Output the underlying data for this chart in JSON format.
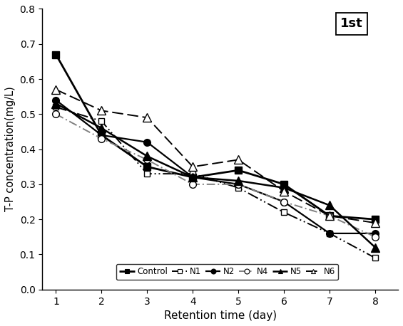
{
  "x": [
    1,
    2,
    3,
    4,
    5,
    6,
    7,
    8
  ],
  "series": {
    "Control": [
      0.67,
      0.44,
      0.35,
      0.32,
      0.34,
      0.3,
      0.21,
      0.2
    ],
    "N1": [
      0.52,
      0.48,
      0.33,
      0.33,
      0.29,
      0.22,
      0.16,
      0.09
    ],
    "N2": [
      0.54,
      0.44,
      0.42,
      0.32,
      0.3,
      0.25,
      0.16,
      0.16
    ],
    "N4": [
      0.5,
      0.43,
      0.37,
      0.3,
      0.3,
      0.25,
      0.21,
      0.15
    ],
    "N5": [
      0.53,
      0.46,
      0.38,
      0.32,
      0.31,
      0.29,
      0.24,
      0.12
    ],
    "N6": [
      0.57,
      0.51,
      0.49,
      0.35,
      0.37,
      0.28,
      0.21,
      0.19
    ]
  },
  "series_order": [
    "Control",
    "N1",
    "N2",
    "N4",
    "N5",
    "N6"
  ],
  "styles": {
    "Control": {
      "color": "#000000",
      "marker": "s",
      "markersize": 7,
      "markerfacecolor": "#000000",
      "linewidth": 2.0,
      "linestyle": "solid"
    },
    "N1": {
      "color": "#000000",
      "marker": "s",
      "markersize": 6,
      "markerfacecolor": "#ffffff",
      "linewidth": 1.4,
      "linestyle": "dashdot_dot"
    },
    "N2": {
      "color": "#000000",
      "marker": "o",
      "markersize": 7,
      "markerfacecolor": "#000000",
      "linewidth": 1.6,
      "linestyle": "solid"
    },
    "N4": {
      "color": "#808080",
      "marker": "o",
      "markersize": 7,
      "markerfacecolor": "#ffffff",
      "linewidth": 1.4,
      "linestyle": "dashdot"
    },
    "N5": {
      "color": "#000000",
      "marker": "^",
      "markersize": 8,
      "markerfacecolor": "#000000",
      "linewidth": 1.8,
      "linestyle": "solid"
    },
    "N6": {
      "color": "#000000",
      "marker": "^",
      "markersize": 8,
      "markerfacecolor": "#ffffff",
      "linewidth": 1.4,
      "linestyle": "dashed"
    }
  },
  "xlabel": "Retention time (day)",
  "ylabel": "T-P concentration(mg/L)",
  "ylim": [
    0,
    0.8
  ],
  "xlim": [
    0.7,
    8.5
  ],
  "yticks": [
    0.0,
    0.1,
    0.2,
    0.3,
    0.4,
    0.5,
    0.6,
    0.7,
    0.8
  ],
  "xticks": [
    1,
    2,
    3,
    4,
    5,
    6,
    7,
    8
  ],
  "annotation": "1st",
  "background_color": "#ffffff",
  "figsize": [
    5.65,
    4.58
  ],
  "dpi": 100
}
